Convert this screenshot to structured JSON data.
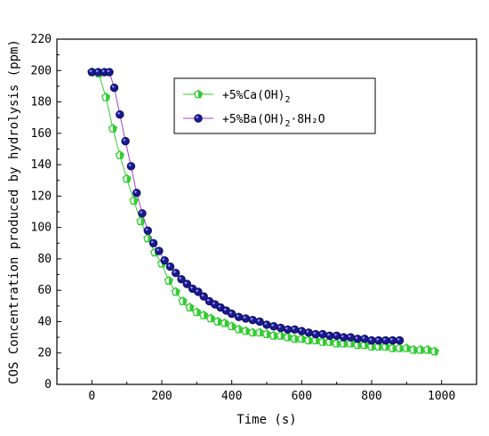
{
  "chart_data": {
    "type": "scatter",
    "xlabel": "Time (s)",
    "ylabel": "COS Concentration produced by hydrolysis (ppm)",
    "xlim": [
      -100,
      1100
    ],
    "ylim": [
      0,
      220
    ],
    "x_ticks": [
      0,
      200,
      400,
      600,
      800,
      1000
    ],
    "y_ticks": [
      0,
      20,
      40,
      60,
      80,
      100,
      120,
      140,
      160,
      180,
      200,
      220
    ],
    "legend_position": "top-center",
    "series": [
      {
        "name": "+5%Ca(OH)",
        "name_sub": "2",
        "name_suffix": "",
        "color": "#33cc33",
        "marker": "pentagon",
        "x": [
          0,
          20,
          40,
          60,
          80,
          100,
          120,
          140,
          160,
          180,
          200,
          220,
          240,
          260,
          280,
          300,
          320,
          340,
          360,
          380,
          400,
          420,
          440,
          460,
          480,
          500,
          520,
          540,
          560,
          580,
          600,
          620,
          640,
          660,
          680,
          700,
          720,
          740,
          760,
          780,
          800,
          820,
          840,
          860,
          880,
          900,
          920,
          940,
          960,
          980
        ],
        "y": [
          199,
          198,
          183,
          163,
          146,
          131,
          117,
          104,
          93,
          84,
          77,
          66,
          59,
          53,
          49,
          46,
          44,
          42,
          40,
          39,
          37,
          35,
          34,
          33,
          33,
          32,
          31,
          31,
          30,
          29,
          29,
          28,
          28,
          27,
          27,
          26,
          26,
          26,
          25,
          25,
          24,
          24,
          24,
          23,
          23,
          23,
          22,
          22,
          22,
          21
        ]
      },
      {
        "name": "+5%Ba(OH)",
        "name_sub": "2",
        "name_suffix": "·8H₂O",
        "color": "#1a1a8c",
        "marker": "circle",
        "x": [
          0,
          18,
          36,
          50,
          64,
          80,
          96,
          112,
          128,
          144,
          160,
          176,
          192,
          208,
          224,
          240,
          256,
          272,
          288,
          304,
          320,
          336,
          352,
          368,
          384,
          400,
          420,
          440,
          460,
          480,
          500,
          520,
          540,
          560,
          580,
          600,
          620,
          640,
          660,
          680,
          700,
          720,
          740,
          760,
          780,
          800,
          820,
          840,
          860,
          880
        ],
        "y": [
          199,
          199,
          199,
          199,
          189,
          172,
          155,
          139,
          122,
          109,
          98,
          90,
          85,
          79,
          75,
          71,
          67,
          64,
          61,
          59,
          56,
          53,
          51,
          49,
          47,
          45,
          43,
          42,
          41,
          40,
          38,
          37,
          36,
          35,
          35,
          34,
          33,
          32,
          32,
          31,
          31,
          30,
          30,
          29,
          29,
          28,
          28,
          28,
          28,
          28
        ]
      }
    ]
  }
}
